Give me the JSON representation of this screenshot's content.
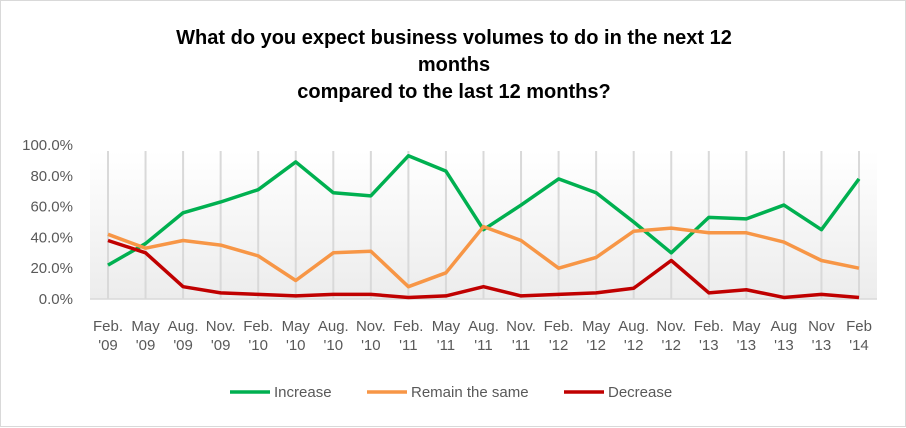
{
  "chart_data": {
    "type": "line",
    "title": [
      "What do you expect business volumes to do in the next 12",
      "months",
      "compared to the last 12 months?"
    ],
    "categories": [
      [
        "Feb.",
        "'09"
      ],
      [
        "May",
        "'09"
      ],
      [
        "Aug.",
        "'09"
      ],
      [
        "Nov.",
        "'09"
      ],
      [
        "Feb.",
        "'10"
      ],
      [
        "May",
        "'10"
      ],
      [
        "Aug.",
        "'10"
      ],
      [
        "Nov.",
        "'10"
      ],
      [
        "Feb.",
        "'11"
      ],
      [
        "May",
        "'11"
      ],
      [
        "Aug.",
        "'11"
      ],
      [
        "Nov.",
        "'11"
      ],
      [
        "Feb.",
        "'12"
      ],
      [
        "May",
        "'12"
      ],
      [
        "Aug.",
        "'12"
      ],
      [
        "Nov.",
        "'12"
      ],
      [
        "Feb.",
        "'13"
      ],
      [
        "May",
        "'13"
      ],
      [
        "Aug",
        "'13"
      ],
      [
        "Nov",
        "'13"
      ],
      [
        "Feb",
        "'14"
      ]
    ],
    "yticks": [
      "0.0%",
      "20.0%",
      "40.0%",
      "60.0%",
      "80.0%",
      "100.0%"
    ],
    "ylim": [
      0,
      100
    ],
    "grid": "vertical lines at categories",
    "legend_position": "bottom",
    "series": [
      {
        "name": "Increase",
        "color": "#00b050",
        "values": [
          22,
          36,
          56,
          63,
          71,
          89,
          69,
          67,
          93,
          83,
          45,
          61,
          78,
          69,
          50,
          30,
          53,
          52,
          61,
          45,
          78
        ]
      },
      {
        "name": "Remain the same",
        "color": "#f79646",
        "values": [
          42,
          33,
          38,
          35,
          28,
          12,
          30,
          31,
          8,
          17,
          47,
          38,
          20,
          27,
          44,
          46,
          43,
          43,
          37,
          25,
          20
        ]
      },
      {
        "name": "Decrease",
        "color": "#c00000",
        "values": [
          38,
          30,
          8,
          4,
          3,
          2,
          3,
          3,
          1,
          2,
          8,
          2,
          3,
          4,
          7,
          25,
          4,
          6,
          1,
          3,
          1
        ]
      }
    ]
  }
}
